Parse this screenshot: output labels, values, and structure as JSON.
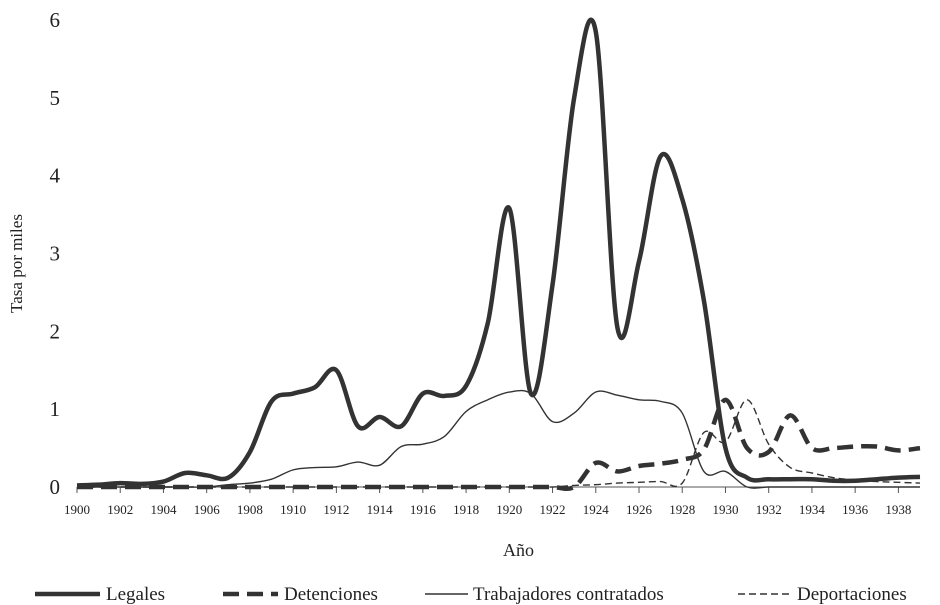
{
  "chart_data": {
    "type": "line",
    "xlabel": "Año",
    "ylabel": "Tasa por miles",
    "xlim": [
      1900,
      1939
    ],
    "ylim": [
      0,
      6
    ],
    "x_ticks": [
      1900,
      1902,
      1904,
      1906,
      1908,
      1910,
      1912,
      1914,
      1916,
      1918,
      1920,
      1922,
      1924,
      1926,
      1928,
      1930,
      1932,
      1934,
      1936,
      1938
    ],
    "y_ticks": [
      0,
      1,
      2,
      3,
      4,
      5,
      6
    ],
    "grid": false,
    "legend_position": "bottom",
    "x": [
      1900,
      1901,
      1902,
      1903,
      1904,
      1905,
      1906,
      1907,
      1908,
      1909,
      1910,
      1911,
      1912,
      1913,
      1914,
      1915,
      1916,
      1917,
      1918,
      1919,
      1920,
      1921,
      1922,
      1923,
      1924,
      1925,
      1926,
      1927,
      1928,
      1929,
      1930,
      1931,
      1932,
      1933,
      1934,
      1935,
      1936,
      1937,
      1938,
      1939
    ],
    "series": [
      {
        "name": "Legales",
        "style": "thick-solid",
        "values": [
          0.02,
          0.03,
          0.05,
          0.04,
          0.07,
          0.18,
          0.15,
          0.12,
          0.45,
          1.1,
          1.2,
          1.28,
          1.5,
          0.78,
          0.9,
          0.78,
          1.2,
          1.17,
          1.3,
          2.1,
          3.58,
          1.2,
          2.6,
          5.0,
          5.85,
          2.05,
          2.9,
          4.25,
          3.7,
          2.4,
          0.5,
          0.12,
          0.1,
          0.1,
          0.1,
          0.08,
          0.08,
          0.1,
          0.12,
          0.13
        ]
      },
      {
        "name": "Detenciones",
        "style": "thick-dashed",
        "values": [
          0,
          0,
          0,
          0,
          0,
          0,
          0,
          0,
          0,
          0,
          0,
          0,
          0,
          0,
          0,
          0,
          0,
          0,
          0,
          0,
          0,
          0,
          0,
          0,
          0.31,
          0.2,
          0.27,
          0.3,
          0.35,
          0.48,
          1.12,
          0.5,
          0.45,
          0.92,
          0.5,
          0.5,
          0.52,
          0.52,
          0.47,
          0.5
        ]
      },
      {
        "name": "Trabajadores contratados",
        "style": "thin-solid",
        "values": [
          0,
          0,
          0,
          0,
          0,
          0,
          0,
          0.03,
          0.05,
          0.1,
          0.22,
          0.25,
          0.26,
          0.32,
          0.28,
          0.52,
          0.55,
          0.65,
          0.97,
          1.12,
          1.22,
          1.2,
          0.84,
          0.95,
          1.22,
          1.18,
          1.12,
          1.1,
          0.95,
          0.2,
          0.2,
          0,
          0,
          0,
          0,
          0,
          0,
          0,
          0,
          0
        ]
      },
      {
        "name": "Deportaciones",
        "style": "thin-dashed",
        "values": [
          0,
          0,
          0,
          0,
          0,
          0,
          0,
          0,
          0,
          0,
          0,
          0,
          0,
          0,
          0,
          0,
          0,
          0,
          0,
          0,
          0,
          0,
          0,
          0.02,
          0.03,
          0.05,
          0.06,
          0.07,
          0.05,
          0.7,
          0.58,
          1.12,
          0.55,
          0.25,
          0.18,
          0.12,
          0.09,
          0.07,
          0.06,
          0.05
        ]
      }
    ]
  }
}
